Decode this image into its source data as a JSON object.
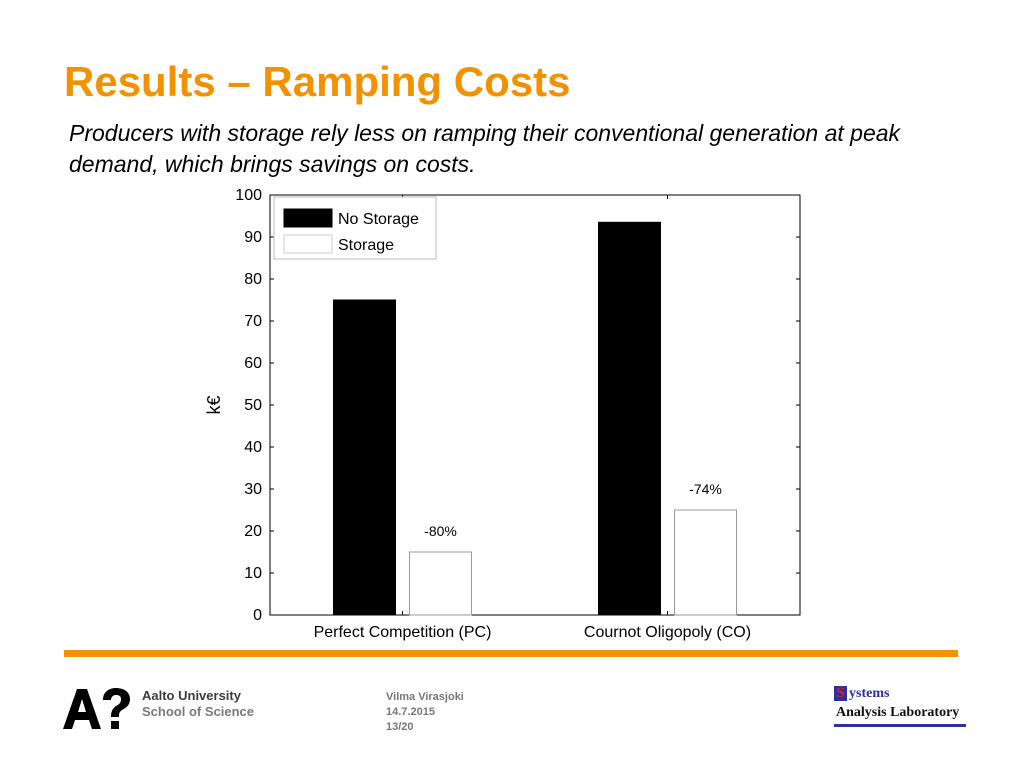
{
  "slide": {
    "title": "Results – Ramping Costs",
    "subtitle": "Producers with storage rely less on ramping their conventional generation at peak demand, which brings savings on costs."
  },
  "footer": {
    "university_line1": "Aalto University",
    "university_line2": "School of Science",
    "author": "Vilma Virasjoki",
    "date": "14.7.2015",
    "page": "13/20",
    "lab_logo_letter": "S",
    "lab_logo_line1": "ystems",
    "lab_logo_line2": "Analysis Laboratory",
    "accent_color": "#f39200"
  },
  "chart_data": {
    "type": "bar",
    "categories": [
      "Perfect Competition (PC)",
      "Cournot Oligopoly (CO)"
    ],
    "series": [
      {
        "name": "No Storage",
        "values": [
          75,
          93.5
        ],
        "color": "#000000"
      },
      {
        "name": "Storage",
        "values": [
          15,
          25
        ],
        "color": "#ffffff"
      }
    ],
    "annotations": [
      {
        "category": 0,
        "series": 1,
        "text": "-80%"
      },
      {
        "category": 1,
        "series": 1,
        "text": "-74%"
      }
    ],
    "ylabel": "k€",
    "xlabel": "",
    "ylim": [
      0,
      100
    ],
    "yticks": [
      0,
      10,
      20,
      30,
      40,
      50,
      60,
      70,
      80,
      90,
      100
    ],
    "grid": false,
    "legend_position": "top-left"
  }
}
